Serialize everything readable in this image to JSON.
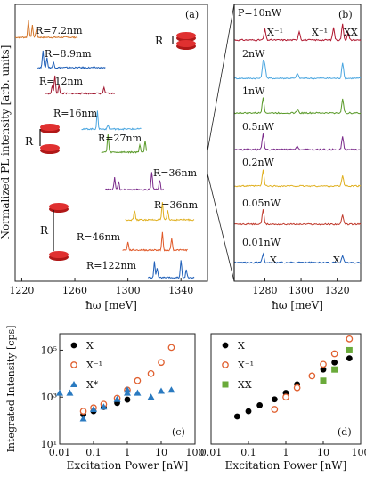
{
  "chart_data": [
    {
      "panel": "(a)",
      "type": "line",
      "xlabel": "ħω [meV]",
      "ylabel": "Normalized PL intensity [arb. units]",
      "xlim": [
        1215,
        1360
      ],
      "xticks": [
        1220,
        1260,
        1300,
        1340
      ],
      "grid": false,
      "series": [
        {
          "name": "R=7.2nm",
          "color": "#d4762a",
          "peaks": [
            [
              1225,
              0.9
            ],
            [
              1228,
              0.6
            ],
            [
              1231,
              0.4
            ]
          ]
        },
        {
          "name": "R=8.9nm",
          "color": "#1f5fb8",
          "peaks": [
            [
              1236,
              0.9
            ],
            [
              1239,
              0.5
            ],
            [
              1244,
              0.3
            ]
          ]
        },
        {
          "name": "R=12nm",
          "color": "#a01830",
          "peaks": [
            [
              1243,
              0.4
            ],
            [
              1245,
              0.9
            ],
            [
              1248,
              0.4
            ],
            [
              1282,
              0.3
            ]
          ]
        },
        {
          "name": "R=16nm",
          "color": "#4aa6e0",
          "peaks": [
            [
              1277,
              0.9
            ],
            [
              1285,
              0.2
            ]
          ]
        },
        {
          "name": "R=27nm",
          "color": "#5a9a2a",
          "peaks": [
            [
              1285,
              0.9
            ],
            [
              1309,
              0.4
            ],
            [
              1313,
              0.6
            ]
          ]
        },
        {
          "name": "R=36nm",
          "color": "#7a2a8a",
          "peaks": [
            [
              1290,
              0.6
            ],
            [
              1293,
              0.4
            ],
            [
              1318,
              0.9
            ],
            [
              1324,
              0.5
            ]
          ]
        },
        {
          "name": "R=36nm",
          "color": "#e0b020",
          "peaks": [
            [
              1305,
              0.5
            ],
            [
              1326,
              0.9
            ],
            [
              1330,
              0.5
            ]
          ]
        },
        {
          "name": "R=46nm",
          "color": "#e05a2a",
          "peaks": [
            [
              1300,
              0.4
            ],
            [
              1326,
              0.9
            ],
            [
              1333,
              0.6
            ]
          ]
        },
        {
          "name": "R=122nm",
          "color": "#1f5fb8",
          "peaks": [
            [
              1320,
              0.8
            ],
            [
              1322,
              0.5
            ],
            [
              1340,
              0.9
            ],
            [
              1344,
              0.4
            ]
          ]
        }
      ]
    },
    {
      "panel": "(b)",
      "type": "line",
      "xlabel": "ħω [meV]",
      "xlim": [
        1263,
        1333
      ],
      "xticks": [
        1280,
        1300,
        1320
      ],
      "grid": false,
      "annotations": [
        "X⁻¹",
        "X⁻¹",
        "XX",
        "X",
        "X"
      ],
      "series": [
        {
          "name": "P=10nW",
          "color": "#b01830",
          "peaks": [
            [
              1280,
              0.6
            ],
            [
              1299,
              0.5
            ],
            [
              1318,
              0.7
            ],
            [
              1323,
              0.9
            ],
            [
              1326,
              0.4
            ]
          ]
        },
        {
          "name": "2nW",
          "color": "#4aa6e0",
          "peaks": [
            [
              1279,
              0.9
            ],
            [
              1280,
              0.7
            ],
            [
              1298,
              0.3
            ],
            [
              1323,
              0.9
            ]
          ]
        },
        {
          "name": "1nW",
          "color": "#5a9a2a",
          "peaks": [
            [
              1279,
              0.9
            ],
            [
              1298,
              0.2
            ],
            [
              1323,
              0.8
            ]
          ]
        },
        {
          "name": "0.5nW",
          "color": "#7a2a8a",
          "peaks": [
            [
              1279,
              0.9
            ],
            [
              1298,
              0.2
            ],
            [
              1323,
              0.7
            ]
          ]
        },
        {
          "name": "0.2nW",
          "color": "#e0b020",
          "peaks": [
            [
              1279,
              0.9
            ],
            [
              1323,
              0.6
            ]
          ]
        },
        {
          "name": "0.05nW",
          "color": "#c0392b",
          "peaks": [
            [
              1279,
              0.8
            ],
            [
              1323,
              0.5
            ]
          ]
        },
        {
          "name": "0.01nW",
          "color": "#1f5fb8",
          "peaks": [
            [
              1279,
              0.5
            ],
            [
              1323,
              0.4
            ]
          ]
        }
      ]
    },
    {
      "panel": "(c)",
      "type": "scatter",
      "xlabel": "Excitation Power [nW]",
      "ylabel": "Integrated Intensity [cps]",
      "xscale": "log",
      "yscale": "log",
      "xlim": [
        0.01,
        100
      ],
      "ylim": [
        10,
        500000
      ],
      "xticks": [
        0.01,
        0.1,
        1,
        10,
        100
      ],
      "xticklabels": [
        "0.01",
        "0.1",
        "1",
        "10",
        "100"
      ],
      "yticks": [
        10,
        1000,
        100000
      ],
      "yticklabels": [
        "10¹",
        "10³",
        "10⁵"
      ],
      "legend": "top-left",
      "series": [
        {
          "name": "X",
          "marker": "circle",
          "color": "#000000",
          "x": [
            0.05,
            0.1,
            0.2,
            0.5,
            1
          ],
          "y": [
            180,
            250,
            380,
            560,
            780
          ]
        },
        {
          "name": "X⁻¹",
          "marker": "open-circle",
          "color": "#e06030",
          "x": [
            0.05,
            0.1,
            0.2,
            0.5,
            1,
            2,
            5,
            10,
            20
          ],
          "y": [
            250,
            350,
            500,
            900,
            2000,
            5000,
            10000,
            30000,
            130000
          ]
        },
        {
          "name": "X*",
          "marker": "triangle",
          "color": "#2a7ac0",
          "x": [
            0.01,
            0.02,
            0.05,
            0.1,
            0.2,
            0.5,
            1,
            1,
            2,
            5,
            10,
            20
          ],
          "y": [
            1500,
            1500,
            120,
            300,
            380,
            800,
            1500,
            2000,
            1500,
            1000,
            1800,
            2000
          ]
        }
      ]
    },
    {
      "panel": "(d)",
      "type": "scatter",
      "xlabel": "Excitation Power [nW]",
      "xscale": "log",
      "yscale": "log",
      "xlim": [
        0.01,
        100
      ],
      "ylim": [
        10,
        500000
      ],
      "xticks": [
        0.01,
        0.1,
        1,
        10,
        100
      ],
      "xticklabels": [
        "0.01",
        "0.1",
        "1",
        "10",
        "100"
      ],
      "legend": "top-left",
      "series": [
        {
          "name": "X",
          "marker": "circle",
          "color": "#000000",
          "x": [
            0.05,
            0.1,
            0.2,
            0.5,
            1,
            2,
            5,
            10,
            20,
            50
          ],
          "y": [
            150,
            250,
            450,
            800,
            1500,
            3500,
            8000,
            15000,
            30000,
            45000
          ]
        },
        {
          "name": "X⁻¹",
          "marker": "open-circle",
          "color": "#e06030",
          "x": [
            0.5,
            1,
            2,
            5,
            10,
            20,
            50
          ],
          "y": [
            300,
            1000,
            2500,
            8000,
            25000,
            70000,
            300000
          ]
        },
        {
          "name": "XX",
          "marker": "square",
          "color": "#6aaa3a",
          "x": [
            10,
            20,
            50
          ],
          "y": [
            5000,
            15000,
            100000
          ]
        }
      ]
    }
  ]
}
